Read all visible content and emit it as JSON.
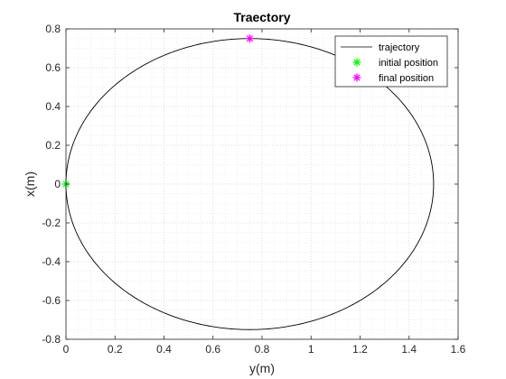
{
  "chart_data": {
    "type": "line",
    "title": "Traectory",
    "xlabel": "y(m)",
    "ylabel": "x(m)",
    "xlim": [
      0,
      1.6
    ],
    "ylim": [
      -0.8,
      0.8
    ],
    "x_ticks": [
      "0",
      "0.2",
      "0.4",
      "0.6",
      "0.8",
      "1",
      "1.2",
      "1.4",
      "1.6"
    ],
    "y_ticks": [
      "-0.8",
      "-0.6",
      "-0.4",
      "-0.2",
      "0",
      "0.2",
      "0.4",
      "0.6",
      "0.8"
    ],
    "grid": "on (major and minor, dotted)",
    "legend_location": "top-right",
    "series": [
      {
        "name": "trajectory",
        "style": "solid line",
        "color": "#000000",
        "shape": "ellipse",
        "center": [
          0.75,
          0
        ],
        "x_semi_axis": 0.75,
        "y_semi_axis": 0.75
      },
      {
        "name": "initial position",
        "style": "asterisk marker",
        "color": "#00ff00",
        "x": [
          0
        ],
        "y": [
          0
        ]
      },
      {
        "name": "final position",
        "style": "asterisk marker",
        "color": "#ff00ff",
        "x": [
          0.75
        ],
        "y": [
          0.75
        ]
      }
    ]
  }
}
